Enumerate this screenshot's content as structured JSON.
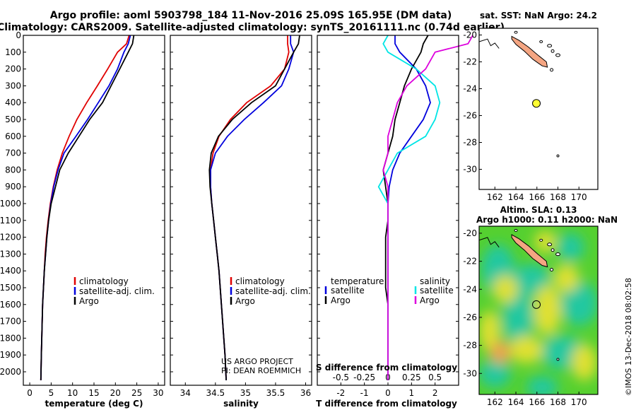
{
  "header": {
    "line1": "Argo profile: aoml 5903798_184 11-Nov-2016 25.09S 165.95E (DM data)",
    "line2": "Climatology: CARS2009. Satellite-adjusted climatology: synTS_20161111.nc (0.74d earlier)"
  },
  "credit": {
    "line1": "US ARGO PROJECT",
    "line2": "PI: DEAN ROEMMICH"
  },
  "watermark": "©IMOS 13-Dec-2018 08:02:58",
  "colors": {
    "argo": "#000000",
    "climatology": "#e00000",
    "satellite": "#0000dd",
    "sat_s": "#00e5e5",
    "argo_s": "#dd00dd",
    "island": "#f4a582",
    "float": "#ffff33"
  },
  "chart_data": [
    {
      "id": "temperature",
      "type": "line",
      "xlabel": "temperature (deg C)",
      "ylabel": "",
      "xlim": [
        -1.5,
        31.5
      ],
      "ylim": [
        2080,
        0
      ],
      "xticks": [
        0,
        5,
        10,
        15,
        20,
        25,
        30
      ],
      "yticks": [
        0,
        100,
        200,
        300,
        400,
        500,
        600,
        700,
        800,
        900,
        1000,
        1100,
        1200,
        1300,
        1400,
        1500,
        1600,
        1700,
        1800,
        1900,
        2000
      ],
      "legend": [
        "climatology",
        "satellite-adj. clim.",
        "Argo"
      ],
      "series": [
        {
          "name": "climatology",
          "color": "#e00000",
          "x": [
            23.2,
            22.6,
            20.5,
            18.2,
            15.8,
            13.3,
            11.0,
            9.2,
            7.6,
            6.4,
            5.5,
            4.8,
            4.3,
            3.9,
            3.6,
            3.4,
            3.2,
            3.0,
            2.9,
            2.8,
            2.7,
            2.6
          ],
          "y": [
            0,
            50,
            100,
            200,
            300,
            400,
            500,
            600,
            700,
            800,
            900,
            1000,
            1100,
            1200,
            1300,
            1400,
            1500,
            1600,
            1700,
            1800,
            1900,
            2050
          ]
        },
        {
          "name": "satellite-adj. clim.",
          "color": "#0000dd",
          "x": [
            23.5,
            23.0,
            22.0,
            20.5,
            18.5,
            16.0,
            13.5,
            10.8,
            8.0,
            6.6,
            5.6,
            4.9,
            4.4,
            4.0,
            3.7,
            3.4,
            3.2,
            3.0,
            2.9,
            2.8,
            2.7,
            2.6
          ],
          "y": [
            0,
            50,
            100,
            200,
            300,
            400,
            500,
            600,
            700,
            800,
            900,
            1000,
            1100,
            1200,
            1300,
            1400,
            1500,
            1600,
            1700,
            1800,
            1900,
            2050
          ]
        },
        {
          "name": "Argo",
          "color": "#000000",
          "x": [
            24.3,
            24.0,
            23.0,
            21.0,
            19.0,
            17.0,
            14.0,
            11.5,
            9.0,
            7.0,
            6.0,
            5.0,
            4.4,
            4.0,
            3.7,
            3.4,
            3.2,
            3.0,
            2.9,
            2.8,
            2.7,
            2.6
          ],
          "y": [
            0,
            50,
            100,
            200,
            300,
            400,
            500,
            600,
            700,
            800,
            900,
            1000,
            1100,
            1200,
            1300,
            1400,
            1500,
            1600,
            1700,
            1800,
            1900,
            2050
          ]
        }
      ]
    },
    {
      "id": "salinity",
      "type": "line",
      "xlabel": "salinity",
      "ylabel": "",
      "xlim": [
        33.75,
        36.1
      ],
      "ylim": [
        2080,
        0
      ],
      "xticks": [
        34,
        34.5,
        35,
        35.5,
        36
      ],
      "xtick_labels": [
        "34",
        "34.5",
        "35",
        "35.5",
        "36"
      ],
      "legend": [
        "climatology",
        "satellite-adj. clim.",
        "Argo"
      ],
      "series": [
        {
          "name": "climatology",
          "color": "#e00000",
          "x": [
            35.7,
            35.7,
            35.72,
            35.65,
            35.42,
            35.02,
            34.75,
            34.56,
            34.46,
            34.42,
            34.42,
            34.44,
            34.47,
            34.5,
            34.53,
            34.56,
            34.58,
            34.6,
            34.62,
            34.64,
            34.66,
            34.68
          ],
          "y": [
            0,
            50,
            100,
            200,
            300,
            400,
            500,
            600,
            700,
            800,
            900,
            1000,
            1100,
            1200,
            1300,
            1400,
            1500,
            1600,
            1700,
            1800,
            1900,
            2050
          ]
        },
        {
          "name": "satellite-adj. clim.",
          "color": "#0000dd",
          "x": [
            35.75,
            35.75,
            35.8,
            35.72,
            35.6,
            35.3,
            34.98,
            34.7,
            34.5,
            34.42,
            34.42,
            34.44,
            34.47,
            34.5,
            34.53,
            34.56,
            34.58,
            34.6,
            34.62,
            34.64,
            34.66,
            34.68
          ],
          "y": [
            0,
            50,
            100,
            200,
            300,
            400,
            500,
            600,
            700,
            800,
            900,
            1000,
            1100,
            1200,
            1300,
            1400,
            1500,
            1600,
            1700,
            1800,
            1900,
            2050
          ]
        },
        {
          "name": "Argo",
          "color": "#000000",
          "x": [
            35.9,
            35.88,
            35.8,
            35.65,
            35.5,
            35.1,
            34.78,
            34.55,
            34.43,
            34.4,
            34.41,
            34.44,
            34.47,
            34.5,
            34.53,
            34.56,
            34.58,
            34.6,
            34.62,
            34.64,
            34.66,
            34.68
          ],
          "y": [
            0,
            50,
            100,
            200,
            300,
            400,
            500,
            600,
            700,
            800,
            900,
            1000,
            1100,
            1200,
            1300,
            1400,
            1500,
            1600,
            1700,
            1800,
            1900,
            2050
          ]
        }
      ]
    },
    {
      "id": "difference",
      "type": "line",
      "xlabel": "T difference from climatology",
      "xlabel2": "S difference from climatology",
      "xlim": [
        -3,
        3
      ],
      "ylim": [
        2080,
        0
      ],
      "xticks": [
        -2,
        -1,
        0,
        1,
        2
      ],
      "xticks2": [
        -0.5,
        -0.25,
        0,
        0.25,
        0.5
      ],
      "xticks2_labels": [
        "-0.5",
        "-0.25",
        "0",
        "0.25",
        "0.5"
      ],
      "legend_left_title": "temperature",
      "legend_right_title": "salinity",
      "legend_left": [
        "satellite",
        "Argo"
      ],
      "legend_right": [
        "satellite",
        "Argo"
      ],
      "series": [
        {
          "name": "satellite",
          "group": "temperature",
          "color": "#0000dd",
          "x": [
            0.3,
            0.3,
            0.5,
            1.2,
            1.6,
            1.8,
            1.5,
            1.0,
            0.5,
            0.2,
            0.05,
            0.0,
            0.0,
            0.0,
            0.0,
            0.0,
            0.0,
            0.0,
            0.0,
            0.0,
            0.0,
            0.0
          ],
          "y": [
            0,
            50,
            100,
            200,
            300,
            400,
            500,
            600,
            700,
            800,
            900,
            1000,
            1100,
            1200,
            1300,
            1400,
            1500,
            1600,
            1700,
            1800,
            1900,
            2050
          ]
        },
        {
          "name": "Argo",
          "group": "temperature",
          "color": "#000000",
          "x": [
            1.7,
            1.5,
            1.4,
            1.0,
            0.7,
            0.5,
            0.3,
            0.2,
            0.0,
            -0.2,
            -0.1,
            0.0,
            0.0,
            -0.1,
            -0.1,
            -0.1,
            -0.1,
            0.0,
            0.0,
            0.0,
            0.0,
            0.0
          ],
          "y": [
            0,
            50,
            100,
            200,
            300,
            400,
            500,
            600,
            700,
            800,
            900,
            1000,
            1100,
            1200,
            1300,
            1400,
            1500,
            1600,
            1700,
            1800,
            1900,
            2050
          ]
        },
        {
          "name": "satellite",
          "group": "salinity",
          "color": "#00e5e5",
          "x": [
            0.0,
            -0.05,
            0.0,
            0.3,
            0.5,
            0.55,
            0.5,
            0.4,
            0.1,
            0.0,
            -0.1,
            0.0,
            0.0,
            0.0,
            0.0,
            0.0,
            0.0,
            0.0,
            0.0,
            0.0,
            0.0,
            0.0
          ],
          "y": [
            0,
            50,
            100,
            200,
            300,
            400,
            500,
            600,
            700,
            800,
            900,
            1000,
            1100,
            1200,
            1300,
            1400,
            1500,
            1600,
            1700,
            1800,
            1900,
            2050
          ]
        },
        {
          "name": "Argo",
          "group": "salinity",
          "color": "#dd00dd",
          "x": [
            0.9,
            0.85,
            0.5,
            0.4,
            0.2,
            0.1,
            0.05,
            0.0,
            0.0,
            -0.05,
            0.0,
            0.0,
            0.0,
            0.0,
            0.0,
            0.0,
            0.0,
            0.0,
            0.0,
            0.0,
            0.0,
            0.0
          ],
          "y": [
            0,
            50,
            100,
            200,
            300,
            400,
            500,
            600,
            700,
            800,
            900,
            1000,
            1100,
            1200,
            1300,
            1400,
            1500,
            1600,
            1700,
            1800,
            1900,
            2050
          ]
        }
      ]
    },
    {
      "id": "sst-map",
      "type": "map",
      "title": "sat. SST: NaN Argo: 24.2",
      "xlim": [
        160.5,
        171.8
      ],
      "ylim": [
        -31.5,
        -19.5
      ],
      "xticks": [
        162,
        164,
        166,
        168,
        170
      ],
      "yticks": [
        -20,
        -22,
        -24,
        -26,
        -28,
        -30
      ],
      "float": {
        "lon": 165.95,
        "lat": -25.09
      }
    },
    {
      "id": "sla-map",
      "type": "heatmap",
      "title": "Altim. SLA: 0.13",
      "subtitle": "Argo h1000: 0.11 h2000: NaN",
      "xlim": [
        160.5,
        171.8
      ],
      "ylim": [
        -31.5,
        -19.5
      ],
      "xticks": [
        162,
        164,
        166,
        168,
        170
      ],
      "yticks": [
        -20,
        -22,
        -24,
        -26,
        -28,
        -30
      ],
      "float": {
        "lon": 165.95,
        "lat": -25.09
      }
    }
  ]
}
